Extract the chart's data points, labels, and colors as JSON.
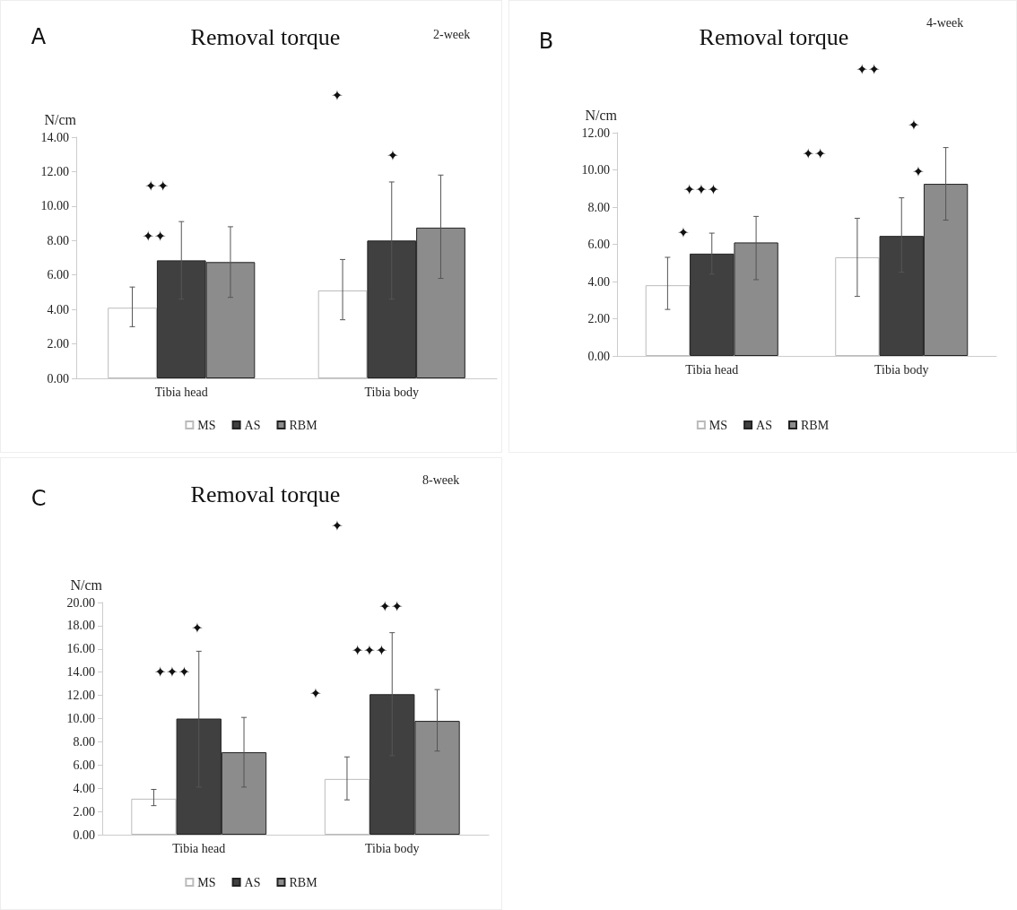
{
  "chart_data": [
    {
      "type": "bar",
      "title": "Removal torque",
      "subtitle": "2-week",
      "ylabel": "N/cm",
      "categories": [
        "Tibia head",
        "Tibia body"
      ],
      "series": [
        {
          "name": "MS",
          "color": "#ffffff",
          "values": [
            4.1,
            5.1
          ],
          "errors": [
            [
              3.0,
              5.3
            ],
            [
              3.4,
              6.9
            ]
          ]
        },
        {
          "name": "AS",
          "color": "#404040",
          "values": [
            6.85,
            8.0
          ],
          "errors": [
            [
              4.6,
              9.1
            ],
            [
              4.6,
              11.4
            ]
          ]
        },
        {
          "name": "RBM",
          "color": "#8c8c8c",
          "values": [
            6.75,
            8.75
          ],
          "errors": [
            [
              4.7,
              8.8
            ],
            [
              5.8,
              11.8
            ]
          ]
        }
      ],
      "ylim": [
        0,
        14
      ],
      "yticks": [
        {
          "value": 0,
          "label": "0.00"
        },
        {
          "value": 2,
          "label": "2.00"
        },
        {
          "value": 4,
          "label": "4.00"
        },
        {
          "value": 6,
          "label": "6.00"
        },
        {
          "value": 8,
          "label": "8.00"
        },
        {
          "value": 10,
          "label": "10.00"
        },
        {
          "value": 12,
          "label": "12.00"
        },
        {
          "value": 14,
          "label": "14.00"
        }
      ],
      "grid": false,
      "legend": "bottom",
      "annotations": [
        "A",
        "✦",
        "✦",
        "✦✦",
        "✦✦"
      ]
    },
    {
      "type": "bar",
      "title": "Removal torque",
      "subtitle": "4-week",
      "ylabel": "N/cm",
      "categories": [
        "Tibia head",
        "Tibia body"
      ],
      "series": [
        {
          "name": "MS",
          "color": "#ffffff",
          "values": [
            3.8,
            5.3
          ],
          "errors": [
            [
              2.5,
              5.3
            ],
            [
              3.2,
              7.4
            ]
          ]
        },
        {
          "name": "AS",
          "color": "#404040",
          "values": [
            5.5,
            6.45
          ],
          "errors": [
            [
              4.4,
              6.6
            ],
            [
              4.5,
              8.5
            ]
          ]
        },
        {
          "name": "RBM",
          "color": "#8c8c8c",
          "values": [
            6.1,
            9.25
          ],
          "errors": [
            [
              4.1,
              7.5
            ],
            [
              7.3,
              11.2
            ]
          ]
        }
      ],
      "ylim": [
        0,
        12
      ],
      "yticks": [
        {
          "value": 0,
          "label": "0.00"
        },
        {
          "value": 2,
          "label": "2.00"
        },
        {
          "value": 4,
          "label": "4.00"
        },
        {
          "value": 6,
          "label": "6.00"
        },
        {
          "value": 8,
          "label": "8.00"
        },
        {
          "value": 10,
          "label": "10.00"
        },
        {
          "value": 12,
          "label": "12.00"
        }
      ],
      "grid": false,
      "legend": "bottom",
      "annotations": [
        "B",
        "✦✦",
        "✦",
        "✦✦",
        "✦",
        "✦✦✦",
        "✦"
      ]
    },
    {
      "type": "bar",
      "title": "Removal torque",
      "subtitle": "8-week",
      "ylabel": "N/cm",
      "categories": [
        "Tibia head",
        "Tibia body"
      ],
      "series": [
        {
          "name": "MS",
          "color": "#ffffff",
          "values": [
            3.1,
            4.8
          ],
          "errors": [
            [
              2.5,
              3.9
            ],
            [
              3.0,
              6.7
            ]
          ]
        },
        {
          "name": "AS",
          "color": "#404040",
          "values": [
            10.0,
            12.1
          ],
          "errors": [
            [
              4.1,
              15.8
            ],
            [
              6.8,
              17.4
            ]
          ]
        },
        {
          "name": "RBM",
          "color": "#8c8c8c",
          "values": [
            7.1,
            9.8
          ],
          "errors": [
            [
              4.1,
              10.1
            ],
            [
              7.2,
              12.5
            ]
          ]
        }
      ],
      "ylim": [
        0,
        20
      ],
      "yticks": [
        {
          "value": 0,
          "label": "0.00"
        },
        {
          "value": 2,
          "label": "2.00"
        },
        {
          "value": 4,
          "label": "4.00"
        },
        {
          "value": 6,
          "label": "6.00"
        },
        {
          "value": 8,
          "label": "8.00"
        },
        {
          "value": 10,
          "label": "10.00"
        },
        {
          "value": 12,
          "label": "12.00"
        },
        {
          "value": 14,
          "label": "14.00"
        },
        {
          "value": 16,
          "label": "16.00"
        },
        {
          "value": 18,
          "label": "18.00"
        },
        {
          "value": 20,
          "label": "20.00"
        }
      ],
      "grid": false,
      "legend": "bottom",
      "annotations": [
        "C",
        "✦",
        "✦✦",
        "✦",
        "✦✦✦",
        "✦✦✦",
        "✦"
      ]
    }
  ]
}
